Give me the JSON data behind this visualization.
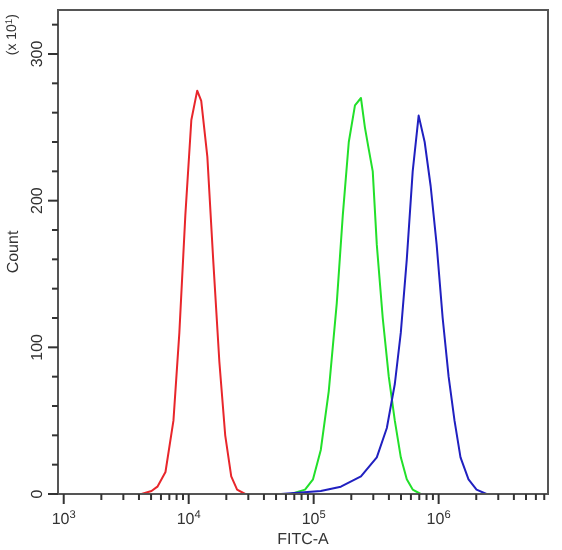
{
  "chart_data": {
    "type": "line",
    "xlabel": "FITC-A",
    "ylabel": "Count",
    "annotations": [
      "(x 10$^{1}$)"
    ],
    "log": "x",
    "grid": false,
    "line_style": "solid",
    "xlim": [
      900,
      7500000
    ],
    "ylim": [
      0,
      330
    ],
    "xticks": [
      {
        "value": 1000,
        "label": "10$^{3}$"
      },
      {
        "value": 2000,
        "label": null
      },
      {
        "value": 3000,
        "label": null
      },
      {
        "value": 4000,
        "label": null
      },
      {
        "value": 5000,
        "label": null
      },
      {
        "value": 6000,
        "label": null
      },
      {
        "value": 7000,
        "label": null
      },
      {
        "value": 8000,
        "label": null
      },
      {
        "value": 9000,
        "label": null
      },
      {
        "value": 10000,
        "label": "10$^{4}$"
      },
      {
        "value": 20000,
        "label": null
      },
      {
        "value": 30000,
        "label": null
      },
      {
        "value": 40000,
        "label": null
      },
      {
        "value": 50000,
        "label": null
      },
      {
        "value": 60000,
        "label": null
      },
      {
        "value": 70000,
        "label": null
      },
      {
        "value": 80000,
        "label": null
      },
      {
        "value": 90000,
        "label": null
      },
      {
        "value": 100000,
        "label": "10$^{5}$"
      },
      {
        "value": 200000,
        "label": null
      },
      {
        "value": 300000,
        "label": null
      },
      {
        "value": 400000,
        "label": null
      },
      {
        "value": 500000,
        "label": null
      },
      {
        "value": 600000,
        "label": null
      },
      {
        "value": 700000,
        "label": null
      },
      {
        "value": 800000,
        "label": null
      },
      {
        "value": 900000,
        "label": null
      },
      {
        "value": 1000000,
        "label": "10$^{6}$"
      },
      {
        "value": 2000000,
        "label": null
      },
      {
        "value": 3000000,
        "label": null
      },
      {
        "value": 4000000,
        "label": null
      },
      {
        "value": 5000000,
        "label": null
      },
      {
        "value": 6000000,
        "label": null
      },
      {
        "value": 7000000,
        "label": null
      }
    ],
    "yticks": [
      0,
      {
        "value": 20,
        "label": null
      },
      {
        "value": 40,
        "label": null
      },
      {
        "value": 60,
        "label": null
      },
      {
        "value": 80,
        "label": null
      },
      100,
      {
        "value": 120,
        "label": null
      },
      {
        "value": 140,
        "label": null
      },
      {
        "value": 160,
        "label": null
      },
      {
        "value": 180,
        "label": null
      },
      200,
      {
        "value": 220,
        "label": null
      },
      {
        "value": 240,
        "label": null
      },
      {
        "value": 260,
        "label": null
      },
      {
        "value": 280,
        "label": null
      },
      300,
      {
        "value": 320,
        "label": null
      }
    ],
    "series": [
      {
        "color": "#e8262b",
        "x": [
          4190,
          5040,
          5620,
          6520,
          7550,
          8420,
          9400,
          10500,
          11700,
          12600,
          14100,
          15700,
          17600,
          19600,
          21900,
          24400,
          28300
        ],
        "values": [
          0,
          2,
          5,
          15,
          50,
          110,
          190,
          255,
          275,
          268,
          230,
          160,
          90,
          40,
          12,
          3,
          0
        ]
      },
      {
        "color": "#22e02a",
        "x": [
          65900,
          85300,
          98800,
          114000,
          132000,
          153000,
          171000,
          191000,
          214000,
          239000,
          257000,
          276000,
          297000,
          320000,
          357000,
          399000,
          446000,
          498000,
          556000,
          620000,
          718000
        ],
        "values": [
          0,
          3,
          10,
          30,
          70,
          130,
          190,
          240,
          265,
          270,
          250,
          235,
          220,
          170,
          120,
          80,
          50,
          25,
          10,
          3,
          0
        ]
      },
      {
        "color": "#2020c0",
        "x": [
          54800,
          114000,
          165000,
          239000,
          320000,
          385000,
          446000,
          498000,
          556000,
          620000,
          692000,
          773000,
          863000,
          964000,
          1077000,
          1202000,
          1340000,
          1496000,
          1734000,
          2010000,
          2415000
        ],
        "values": [
          0,
          2,
          5,
          12,
          25,
          45,
          75,
          110,
          160,
          220,
          258,
          240,
          210,
          170,
          120,
          80,
          50,
          25,
          10,
          3,
          0
        ]
      }
    ]
  }
}
